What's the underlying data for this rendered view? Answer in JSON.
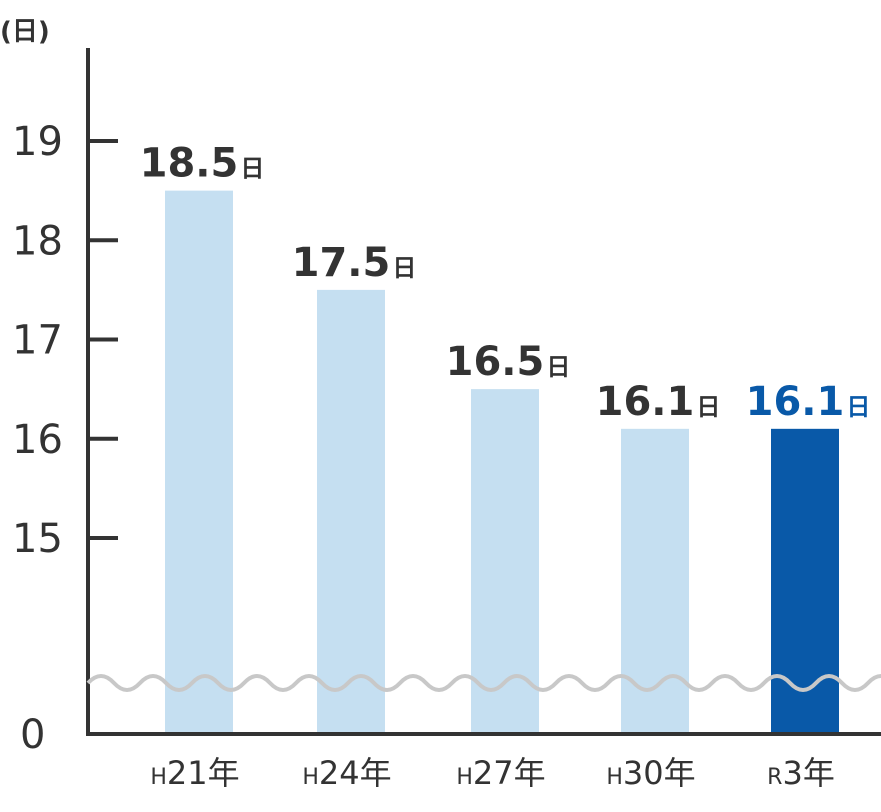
{
  "chart_data": {
    "type": "bar",
    "y_unit_label": "(日)",
    "categories": [
      {
        "prefix": "H",
        "label": "21年"
      },
      {
        "prefix": "H",
        "label": "24年"
      },
      {
        "prefix": "H",
        "label": "27年"
      },
      {
        "prefix": "H",
        "label": "30年"
      },
      {
        "prefix": "R",
        "label": "3年"
      }
    ],
    "values": [
      18.5,
      17.5,
      16.5,
      16.1,
      16.1
    ],
    "value_labels": [
      "18.5",
      "17.5",
      "16.5",
      "16.1",
      "16.1"
    ],
    "value_unit": "日",
    "y_ticks": [
      15,
      16,
      17,
      18,
      19
    ],
    "y_zero_label": "0",
    "ylim": [
      15,
      19
    ],
    "axis_break": true,
    "highlight_index": 4,
    "colors": {
      "bar": "#c5dff1",
      "bar_highlight": "#0959a8",
      "text": "#333333",
      "highlight_text": "#0959a8",
      "axis": "#333333",
      "break_line": "#c8c8c8"
    }
  }
}
